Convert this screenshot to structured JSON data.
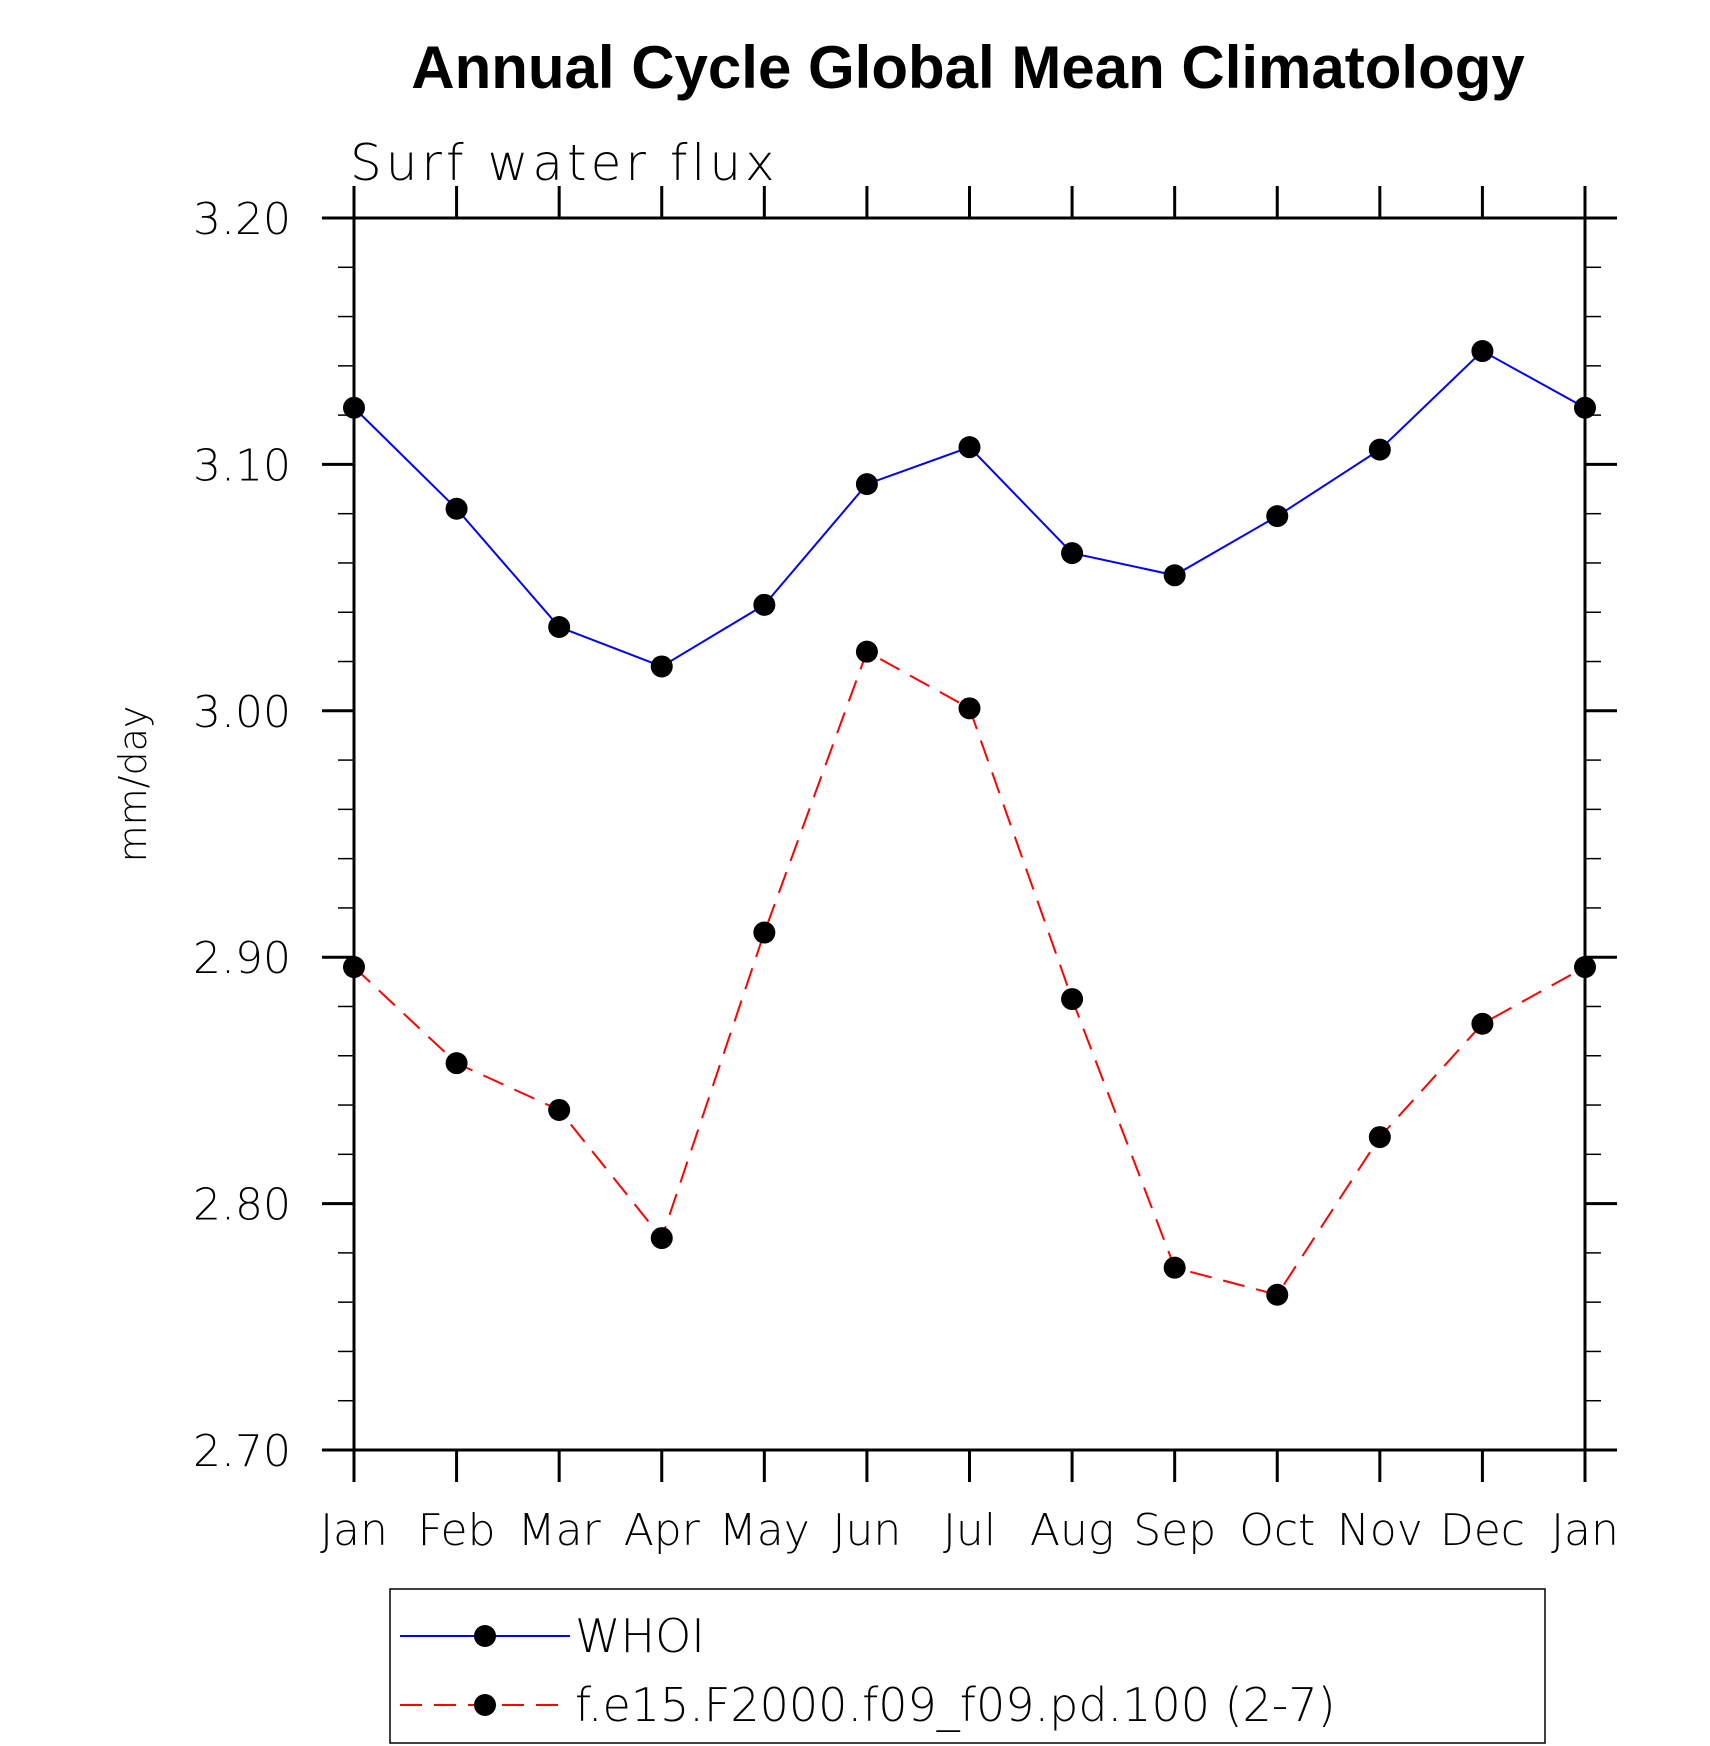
{
  "chart_data": {
    "type": "line",
    "title": "Annual Cycle Global Mean Climatology",
    "subtitle": "Surf water flux",
    "xlabel": "",
    "ylabel": "mm/day",
    "categories": [
      "Jan",
      "Feb",
      "Mar",
      "Apr",
      "May",
      "Jun",
      "Jul",
      "Aug",
      "Sep",
      "Oct",
      "Nov",
      "Dec",
      "Jan"
    ],
    "ylim": [
      2.7,
      3.2
    ],
    "yticks": [
      "2.70",
      "2.80",
      "2.90",
      "3.00",
      "3.10",
      "3.20"
    ],
    "grid": false,
    "legend_position": "bottom",
    "series": [
      {
        "name": "WHOI",
        "color": "#0000ff",
        "dash": "solid",
        "values": [
          3.123,
          3.082,
          3.034,
          3.018,
          3.043,
          3.092,
          3.107,
          3.064,
          3.055,
          3.079,
          3.106,
          3.146,
          3.123
        ]
      },
      {
        "name": "f.e15.F2000.f09_f09.pd.100 (2-7)",
        "color": "#ff0000",
        "dash": "dashed",
        "values": [
          2.896,
          2.857,
          2.838,
          2.786,
          2.91,
          3.024,
          3.001,
          2.883,
          2.774,
          2.763,
          2.827,
          2.873,
          2.896
        ]
      }
    ]
  }
}
